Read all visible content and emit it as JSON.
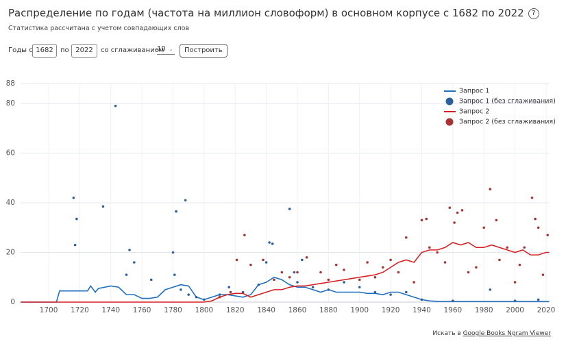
{
  "header": {
    "title": "Распределение по годам (частота на миллион словоформ) в основном корпусе с 1682 по 2022",
    "help_icon": "?",
    "subtitle": "Статистика рассчитана с учетом совпадающих слов"
  },
  "form": {
    "from_label": "Годы с",
    "from_value": "1682",
    "to_label": "по",
    "to_value": "2022",
    "smoothing_label": "со сглаживанием",
    "smoothing_value": "10",
    "button": "Построить"
  },
  "footer": {
    "prefix": "Искать в",
    "link": "Google Books Ngram Viewer"
  },
  "chart_data": {
    "type": "line",
    "xlim": [
      1682,
      2022
    ],
    "ylim": [
      0,
      88
    ],
    "xticks": [
      1700,
      1720,
      1740,
      1760,
      1780,
      1800,
      1820,
      1840,
      1860,
      1880,
      1900,
      1920,
      1940,
      1960,
      1980,
      2000,
      2020
    ],
    "yticks": [
      0,
      20,
      40,
      60,
      80,
      88
    ],
    "grid": true,
    "legend": "top-right",
    "series": [
      {
        "name": "Запрос 1",
        "type": "line",
        "color": "#1f6fbf",
        "x": [
          1682,
          1705,
          1707,
          1725,
          1727,
          1730,
          1732,
          1740,
          1745,
          1750,
          1755,
          1760,
          1765,
          1770,
          1775,
          1780,
          1785,
          1790,
          1795,
          1800,
          1805,
          1810,
          1815,
          1820,
          1825,
          1830,
          1835,
          1840,
          1845,
          1850,
          1855,
          1860,
          1865,
          1870,
          1875,
          1880,
          1885,
          1890,
          1895,
          1900,
          1905,
          1910,
          1915,
          1920,
          1925,
          1930,
          1935,
          1940,
          1945,
          1950,
          2022
        ],
        "values": [
          0,
          0,
          4.5,
          4.5,
          6.5,
          4,
          5.5,
          6.5,
          6,
          3,
          3,
          1.5,
          1.5,
          2,
          5,
          6,
          7,
          6.5,
          2,
          1,
          2,
          3,
          3,
          2.5,
          2,
          3,
          7,
          8,
          10,
          9,
          7,
          6,
          6,
          5,
          4,
          5,
          4,
          4,
          4,
          4,
          3.5,
          3.5,
          3,
          4,
          4,
          3,
          2,
          1,
          0.5,
          0.3,
          0.3
        ]
      },
      {
        "name": "Запрос 1 (без сглаживания)",
        "type": "scatter",
        "color": "#2c5f9e",
        "x": [
          1716,
          1717,
          1718,
          1735,
          1743,
          1752,
          1755,
          1750,
          1766,
          1780,
          1782,
          1788,
          1781,
          1785,
          1790,
          1795,
          1800,
          1810,
          1816,
          1825,
          1835,
          1840,
          1842,
          1844,
          1855,
          1858,
          1860,
          1863,
          1870,
          1880,
          1890,
          1900,
          1910,
          1920,
          1930,
          1940,
          1960,
          1984,
          2000,
          2015
        ],
        "values": [
          42,
          23,
          33.5,
          38.5,
          79,
          21,
          16,
          11,
          9,
          20,
          36.5,
          41,
          11,
          5,
          3,
          2,
          1,
          3,
          6,
          4,
          7,
          16,
          24,
          23.5,
          37.5,
          12,
          8,
          17,
          6,
          5,
          8,
          6,
          4,
          3,
          4,
          1,
          0.5,
          5,
          0.5,
          1
        ]
      },
      {
        "name": "Запрос 2",
        "type": "line",
        "color": "#d62020",
        "x": [
          1682,
          1800,
          1805,
          1810,
          1815,
          1820,
          1825,
          1830,
          1835,
          1840,
          1845,
          1850,
          1855,
          1860,
          1865,
          1870,
          1875,
          1880,
          1885,
          1890,
          1895,
          1900,
          1905,
          1910,
          1915,
          1920,
          1925,
          1930,
          1935,
          1940,
          1945,
          1950,
          1955,
          1960,
          1965,
          1970,
          1975,
          1980,
          1985,
          1990,
          1995,
          2000,
          2005,
          2010,
          2015,
          2020,
          2022
        ],
        "values": [
          0,
          0,
          0.5,
          2,
          3,
          3.5,
          3.5,
          2,
          3,
          4,
          5,
          5,
          6,
          6.5,
          6.5,
          7,
          7.5,
          8,
          8.5,
          9,
          9.5,
          10,
          10.5,
          11,
          12,
          14,
          16,
          17,
          16,
          20,
          21,
          21,
          22,
          24,
          23,
          24,
          22,
          22,
          23,
          22,
          21,
          20,
          21,
          19,
          19,
          20,
          20
        ]
      },
      {
        "name": "Запрос 2 (без сглаживания)",
        "type": "scatter",
        "color": "#a83232",
        "x": [
          1810,
          1817,
          1821,
          1826,
          1830,
          1838,
          1845,
          1850,
          1855,
          1860,
          1866,
          1875,
          1880,
          1885,
          1890,
          1900,
          1905,
          1910,
          1915,
          1920,
          1925,
          1930,
          1935,
          1940,
          1943,
          1945,
          1950,
          1955,
          1958,
          1961,
          1963,
          1966,
          1970,
          1975,
          1980,
          1984,
          1988,
          1990,
          1995,
          2000,
          2003,
          2006,
          2011,
          2013,
          2015,
          2018,
          2021
        ],
        "values": [
          2,
          4,
          17,
          27,
          15,
          17,
          9,
          12,
          10,
          12,
          18,
          12,
          9,
          15,
          13,
          9,
          16,
          10,
          14,
          17,
          12,
          26,
          8,
          33,
          33.5,
          22,
          20,
          16,
          38,
          32,
          36,
          37,
          12,
          14,
          30,
          45.5,
          33,
          17,
          22,
          8,
          15,
          22,
          42,
          33.5,
          30,
          11,
          27
        ]
      }
    ]
  }
}
